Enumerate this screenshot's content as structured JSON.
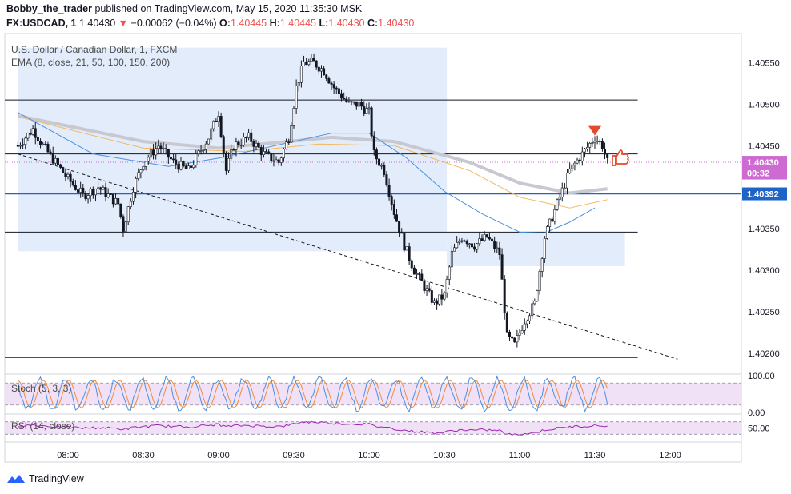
{
  "header": {
    "author": "Bobby_the_trader",
    "published": "published on TradingView.com, May 15, 2020 11:35:30 MSK",
    "symbol": "FX:USDCAD, 1",
    "last": "1.40430",
    "arrow": "▼",
    "change": "−0.00062 (−0.04%)",
    "o_label": "O:",
    "o": "1.40445",
    "h_label": "H:",
    "h": "1.40445",
    "l_label": "L:",
    "l": "1.40430",
    "c_label": "C:",
    "c": "1.40430"
  },
  "legend": {
    "instrument": "U.S. Dollar / Canadian Dollar, 1, FXCM",
    "ema": "EMA (8, close, 21, 50, 100, 150, 200)",
    "stoch": "Stoch (5, 3, 3)",
    "rsi": "RSI (14, close)"
  },
  "footer": {
    "brand": "TradingView"
  },
  "colors": {
    "up": "#ffffff",
    "down": "#131722",
    "highlight": "#e3ecfb",
    "ema_blue": "#4a90e2",
    "ema_orange": "#f4b860",
    "ema_gray": "#c8c8d0",
    "price_label": "#ce6bd3",
    "blue_line": "#1e63c8",
    "osc_fill": "#f1e1f7",
    "stoch_k": "#4a90e2",
    "stoch_d": "#f08c3c",
    "rsi": "#9c27b0",
    "marker_red": "#e34a2e"
  },
  "icons": [
    "down-arrow-icon",
    "thumbs-up-icon",
    "tradingview-logo-icon"
  ],
  "chart_data": {
    "type": "candlestick",
    "x_ticks": [
      "08:00",
      "08:30",
      "09:00",
      "09:30",
      "10:00",
      "10:30",
      "11:00",
      "11:30",
      "12:00"
    ],
    "y_ticks": [
      "1.40550",
      "1.40500",
      "1.40450",
      "1.40350",
      "1.40300",
      "1.40250",
      "1.40200"
    ],
    "ylim": [
      1.40175,
      1.40585
    ],
    "price_labels": [
      {
        "text": "1.40430",
        "value": 1.4043,
        "color": "price_label"
      },
      {
        "text": "00:32",
        "value": 1.40417,
        "color": "price_label"
      },
      {
        "text": "1.40392",
        "value": 1.40392,
        "color": "blue_line"
      }
    ],
    "horizontal_levels": [
      1.40505,
      1.4044,
      1.40346,
      1.40195
    ],
    "blue_level": 1.40392,
    "dotted_level": 1.4043,
    "trendline": {
      "from": [
        "07:40",
        1.4044
      ],
      "to": [
        "12:03",
        1.40193
      ]
    },
    "zones": [
      {
        "from": "07:40",
        "to": "10:31",
        "top": 1.40568,
        "bottom": 1.40323
      },
      {
        "from": "10:31",
        "to": "11:42",
        "top": 1.40346,
        "bottom": 1.40305
      }
    ],
    "anchors": [
      [
        "07:40",
        1.4045
      ],
      [
        "07:46",
        1.4047
      ],
      [
        "07:50",
        1.4045
      ],
      [
        "07:55",
        1.4043
      ],
      [
        "08:00",
        1.4041
      ],
      [
        "08:06",
        1.4039
      ],
      [
        "08:12",
        1.404
      ],
      [
        "08:16",
        1.4039
      ],
      [
        "08:20",
        1.4038
      ],
      [
        "08:22",
        1.4035
      ],
      [
        "08:26",
        1.404
      ],
      [
        "08:30",
        1.4043
      ],
      [
        "08:36",
        1.4045
      ],
      [
        "08:42",
        1.4043
      ],
      [
        "08:48",
        1.4042
      ],
      [
        "08:52",
        1.4044
      ],
      [
        "08:56",
        1.4046
      ],
      [
        "09:00",
        1.4049
      ],
      [
        "09:03",
        1.4042
      ],
      [
        "09:06",
        1.4045
      ],
      [
        "09:12",
        1.4046
      ],
      [
        "09:18",
        1.4044
      ],
      [
        "09:24",
        1.4043
      ],
      [
        "09:28",
        1.4046
      ],
      [
        "09:31",
        1.4052
      ],
      [
        "09:34",
        1.4055
      ],
      [
        "09:38",
        1.4055
      ],
      [
        "09:42",
        1.4054
      ],
      [
        "09:46",
        1.4052
      ],
      [
        "09:52",
        1.405
      ],
      [
        "09:56",
        1.405
      ],
      [
        "10:00",
        1.4049
      ],
      [
        "10:02",
        1.4044
      ],
      [
        "10:06",
        1.4042
      ],
      [
        "10:10",
        1.4037
      ],
      [
        "10:14",
        1.4033
      ],
      [
        "10:18",
        1.403
      ],
      [
        "10:22",
        1.4028
      ],
      [
        "10:26",
        1.4026
      ],
      [
        "10:30",
        1.4027
      ],
      [
        "10:33",
        1.4032
      ],
      [
        "10:37",
        1.4034
      ],
      [
        "10:42",
        1.4033
      ],
      [
        "10:47",
        1.4034
      ],
      [
        "10:52",
        1.4032
      ],
      [
        "10:55",
        1.4022
      ],
      [
        "10:58",
        1.4021
      ],
      [
        "11:02",
        1.4024
      ],
      [
        "11:06",
        1.4026
      ],
      [
        "11:10",
        1.4034
      ],
      [
        "11:15",
        1.4038
      ],
      [
        "11:20",
        1.4042
      ],
      [
        "11:25",
        1.4044
      ],
      [
        "11:30",
        1.4046
      ],
      [
        "11:33",
        1.4045
      ],
      [
        "11:35",
        1.4043
      ]
    ],
    "ema_blue": [
      [
        "07:40",
        1.4049
      ],
      [
        "08:10",
        1.4044
      ],
      [
        "08:40",
        1.40425
      ],
      [
        "09:00",
        1.40435
      ],
      [
        "09:30",
        1.40455
      ],
      [
        "09:45",
        1.40465
      ],
      [
        "10:00",
        1.40465
      ],
      [
        "10:15",
        1.40435
      ],
      [
        "10:30",
        1.40395
      ],
      [
        "10:45",
        1.40368
      ],
      [
        "11:00",
        1.40346
      ],
      [
        "11:10",
        1.40345
      ],
      [
        "11:20",
        1.40358
      ],
      [
        "11:30",
        1.40375
      ]
    ],
    "ema_orange": [
      [
        "07:40",
        1.40485
      ],
      [
        "08:30",
        1.40447
      ],
      [
        "09:10",
        1.40443
      ],
      [
        "09:40",
        1.40452
      ],
      [
        "10:10",
        1.4045
      ],
      [
        "10:40",
        1.4042
      ],
      [
        "11:00",
        1.40388
      ],
      [
        "11:20",
        1.40375
      ],
      [
        "11:35",
        1.40385
      ]
    ],
    "ema_gray": [
      [
        "07:40",
        1.40486
      ],
      [
        "08:30",
        1.40455
      ],
      [
        "09:00",
        1.40447
      ],
      [
        "09:45",
        1.4046
      ],
      [
        "10:10",
        1.40455
      ],
      [
        "10:40",
        1.4043
      ],
      [
        "11:00",
        1.40405
      ],
      [
        "11:20",
        1.40393
      ],
      [
        "11:35",
        1.40398
      ]
    ],
    "stoch": {
      "ylim": [
        0,
        100
      ],
      "ticks": [
        "100.00",
        "0.00"
      ],
      "upper": 80,
      "lower": 20
    },
    "rsi": {
      "ylim": [
        10,
        90
      ],
      "ticks": [
        "50.00"
      ],
      "upper": 70,
      "lower": 30
    }
  }
}
